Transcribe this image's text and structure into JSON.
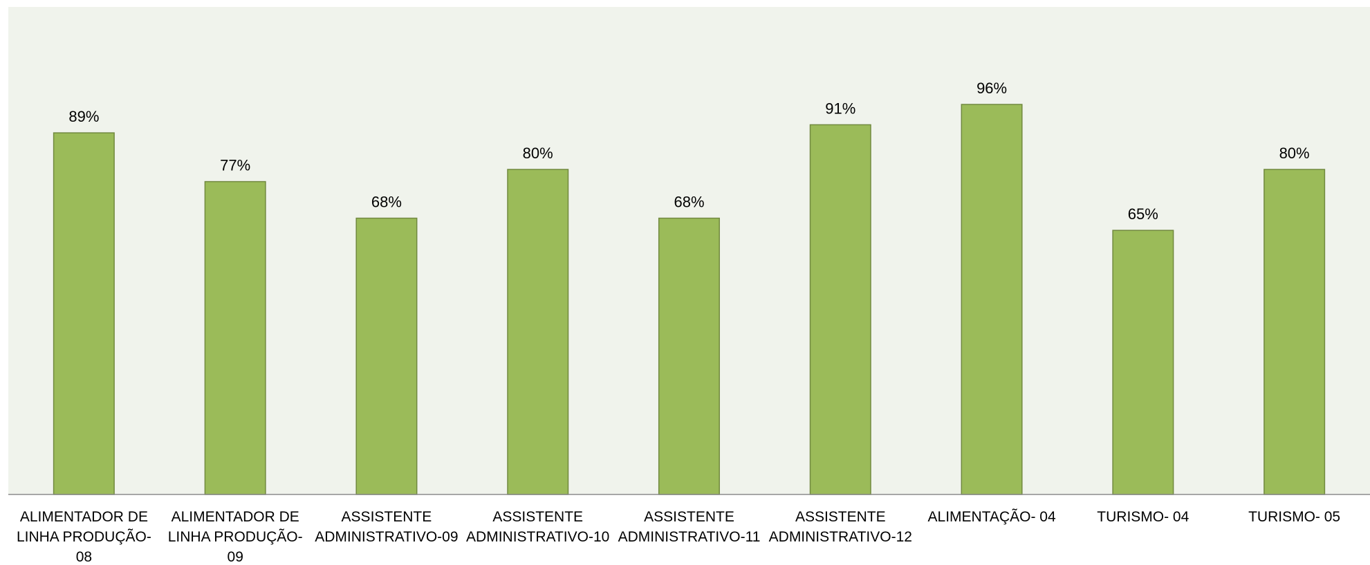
{
  "chart_data": {
    "type": "bar",
    "categories": [
      [
        "ALIMENTADOR DE",
        "LINHA PRODUÇÃO-",
        "08"
      ],
      [
        "ALIMENTADOR DE",
        "LINHA PRODUÇÃO-",
        "09"
      ],
      [
        "ASSISTENTE",
        "ADMINISTRATIVO-09"
      ],
      [
        "ASSISTENTE",
        "ADMINISTRATIVO-10"
      ],
      [
        "ASSISTENTE",
        "ADMINISTRATIVO-11"
      ],
      [
        "ASSISTENTE",
        "ADMINISTRATIVO-12"
      ],
      [
        "ALIMENTAÇÃO- 04"
      ],
      [
        "TURISMO- 04"
      ],
      [
        "TURISMO- 05"
      ]
    ],
    "values": [
      89,
      77,
      68,
      80,
      68,
      91,
      96,
      65,
      80
    ],
    "value_labels": [
      "89%",
      "77%",
      "68%",
      "80%",
      "68%",
      "91%",
      "96%",
      "65%",
      "80%"
    ],
    "ylim": [
      0,
      120
    ],
    "grid": false,
    "legend": "none",
    "colors": {
      "bar": "#9bbb59",
      "bar_border": "#71893f",
      "plot_background": "#f0f3ec"
    }
  }
}
